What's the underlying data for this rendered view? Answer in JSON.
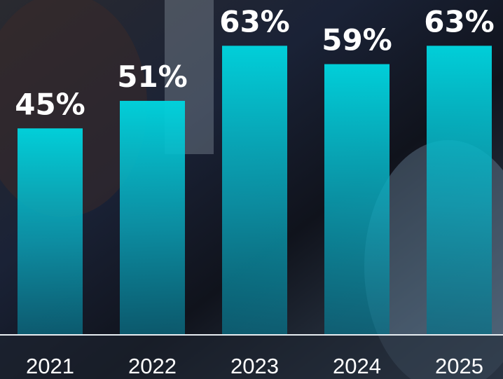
{
  "chart_data": {
    "type": "bar",
    "categories": [
      "2021",
      "2022",
      "2023",
      "2024",
      "2025"
    ],
    "values": [
      45,
      51,
      63,
      59,
      63
    ],
    "value_labels": [
      "45%",
      "51%",
      "63%",
      "59%",
      "63%"
    ],
    "color": "#00d0da"
  }
}
